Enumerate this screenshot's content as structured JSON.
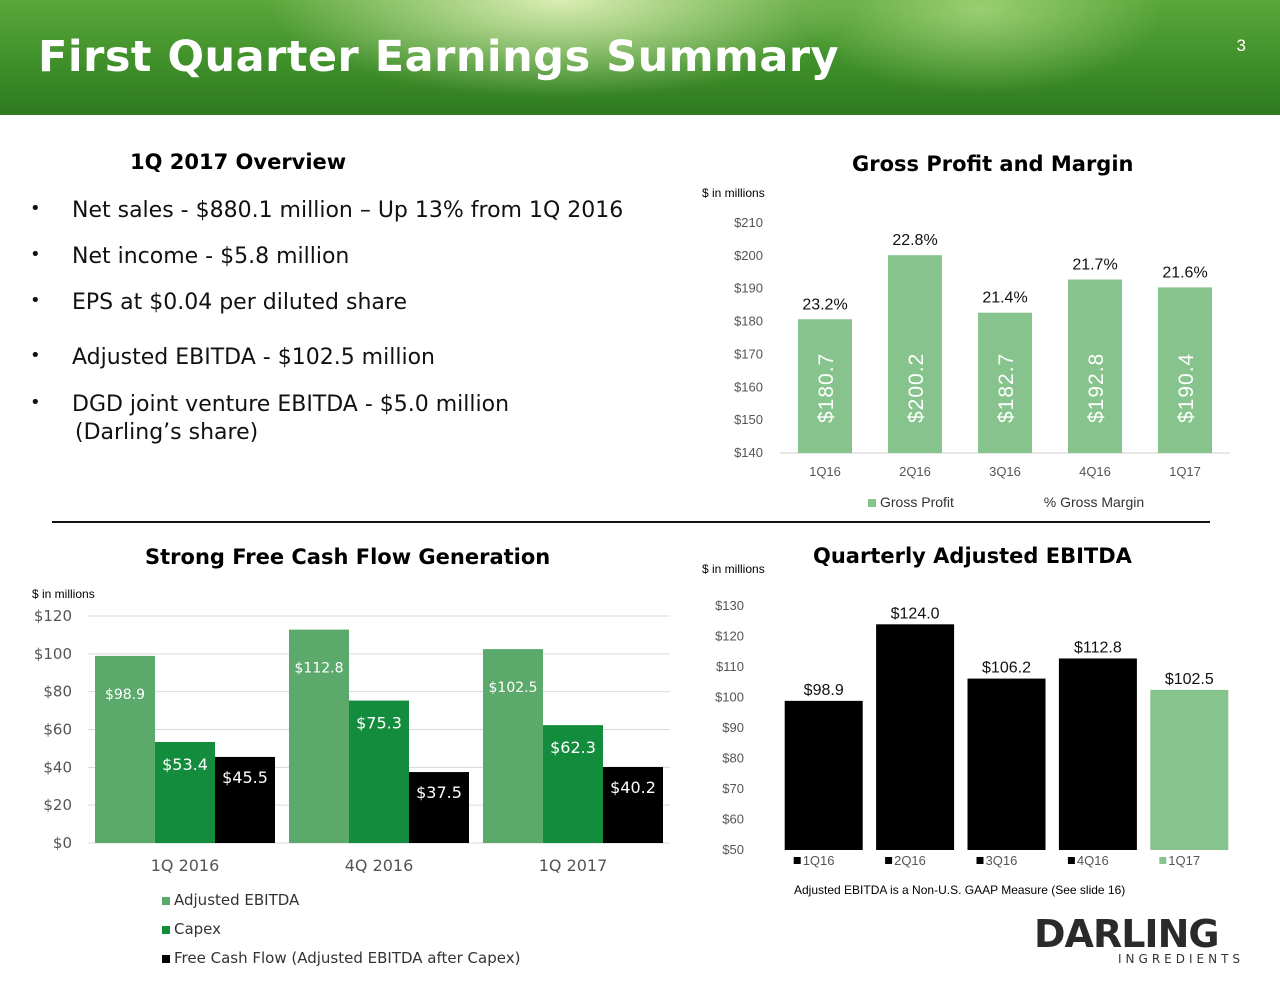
{
  "header": {
    "title": "First Quarter Earnings Summary",
    "slide_number": "3"
  },
  "overview": {
    "title": "1Q 2017 Overview",
    "bullets": [
      "Net sales - $880.1 million – Up 13% from 1Q 2016",
      "Net income - $5.8 million",
      "EPS at $0.04 per diluted share",
      "Adjusted EBITDA - $102.5 million",
      "DGD joint venture EBITDA - $5.0 million",
      "(Darling’s share)"
    ]
  },
  "colors": {
    "banner_green": "#3f8f2a",
    "gp_bar": "#86c38d",
    "ebitda_light": "#5ba96b",
    "capex_green": "#138c3d",
    "fcf_black": "#000000",
    "qe_black": "#000000",
    "qe_current": "#86c38d"
  },
  "chart_data": [
    {
      "id": "gross-profit",
      "type": "bar",
      "title": "Gross Profit and Margin",
      "unit_note": "$ in millions",
      "categories": [
        "1Q16",
        "2Q16",
        "3Q16",
        "4Q16",
        "1Q17"
      ],
      "series": [
        {
          "name": "Gross Profit",
          "values": [
            180.7,
            200.2,
            182.7,
            192.8,
            190.4
          ],
          "value_labels": [
            "$180.7",
            "$200.2",
            "$182.7",
            "$192.8",
            "$190.4"
          ]
        },
        {
          "name": "% Gross Margin",
          "values": [
            23.2,
            22.8,
            21.4,
            21.7,
            21.6
          ],
          "value_labels": [
            "23.2%",
            "22.8%",
            "21.4%",
            "21.7%",
            "21.6%"
          ]
        }
      ],
      "ylim": [
        140,
        210
      ],
      "ticks": [
        140,
        150,
        160,
        170,
        180,
        190,
        200,
        210
      ],
      "tick_labels": [
        "$140",
        "$150",
        "$160",
        "$170",
        "$180",
        "$190",
        "$200",
        "$210"
      ],
      "grid": false,
      "legend_position": "bottom"
    },
    {
      "id": "free-cash-flow",
      "type": "bar",
      "title": "Strong Free Cash Flow Generation",
      "unit_note": "$ in millions",
      "categories": [
        "1Q 2016",
        "4Q 2016",
        "1Q 2017"
      ],
      "series": [
        {
          "name": "Adjusted EBITDA",
          "values": [
            98.9,
            112.8,
            102.5
          ],
          "value_labels": [
            "$98.9",
            "$112.8",
            "$102.5"
          ]
        },
        {
          "name": "Capex",
          "values": [
            53.4,
            75.3,
            62.3
          ],
          "value_labels": [
            "$53.4",
            "$75.3",
            "$62.3"
          ]
        },
        {
          "name": "Free Cash Flow (Adjusted EBITDA after Capex)",
          "values": [
            45.5,
            37.5,
            40.2
          ],
          "value_labels": [
            "$45.5",
            "$37.5",
            "$40.2"
          ]
        }
      ],
      "ylim": [
        0,
        120
      ],
      "ticks": [
        0,
        20,
        40,
        60,
        80,
        100,
        120
      ],
      "tick_labels": [
        "$0",
        "$20",
        "$40",
        "$60",
        "$80",
        "$100",
        "$120"
      ],
      "grid": true,
      "legend_position": "bottom-left"
    },
    {
      "id": "quarterly-ebitda",
      "type": "bar",
      "title": "Quarterly Adjusted EBITDA",
      "unit_note": "$ in millions",
      "categories": [
        "1Q16",
        "2Q16",
        "3Q16",
        "4Q16",
        "1Q17"
      ],
      "values": [
        98.9,
        124.0,
        106.2,
        112.8,
        102.5
      ],
      "value_labels": [
        "$98.9",
        "$124.0",
        "$106.2",
        "$112.8",
        "$102.5"
      ],
      "ylim": [
        50,
        130
      ],
      "ticks": [
        50,
        60,
        70,
        80,
        90,
        100,
        110,
        120,
        130
      ],
      "tick_labels": [
        "$50",
        "$60",
        "$70",
        "$80",
        "$90",
        "$100",
        "$110",
        "$120",
        "$130"
      ],
      "grid": false,
      "legend_position": "bottom",
      "footnote": "Adjusted EBITDA is a Non-U.S. GAAP Measure (See slide 16)"
    }
  ],
  "logo": {
    "word": "DARLING",
    "sub": "INGREDIENTS"
  }
}
